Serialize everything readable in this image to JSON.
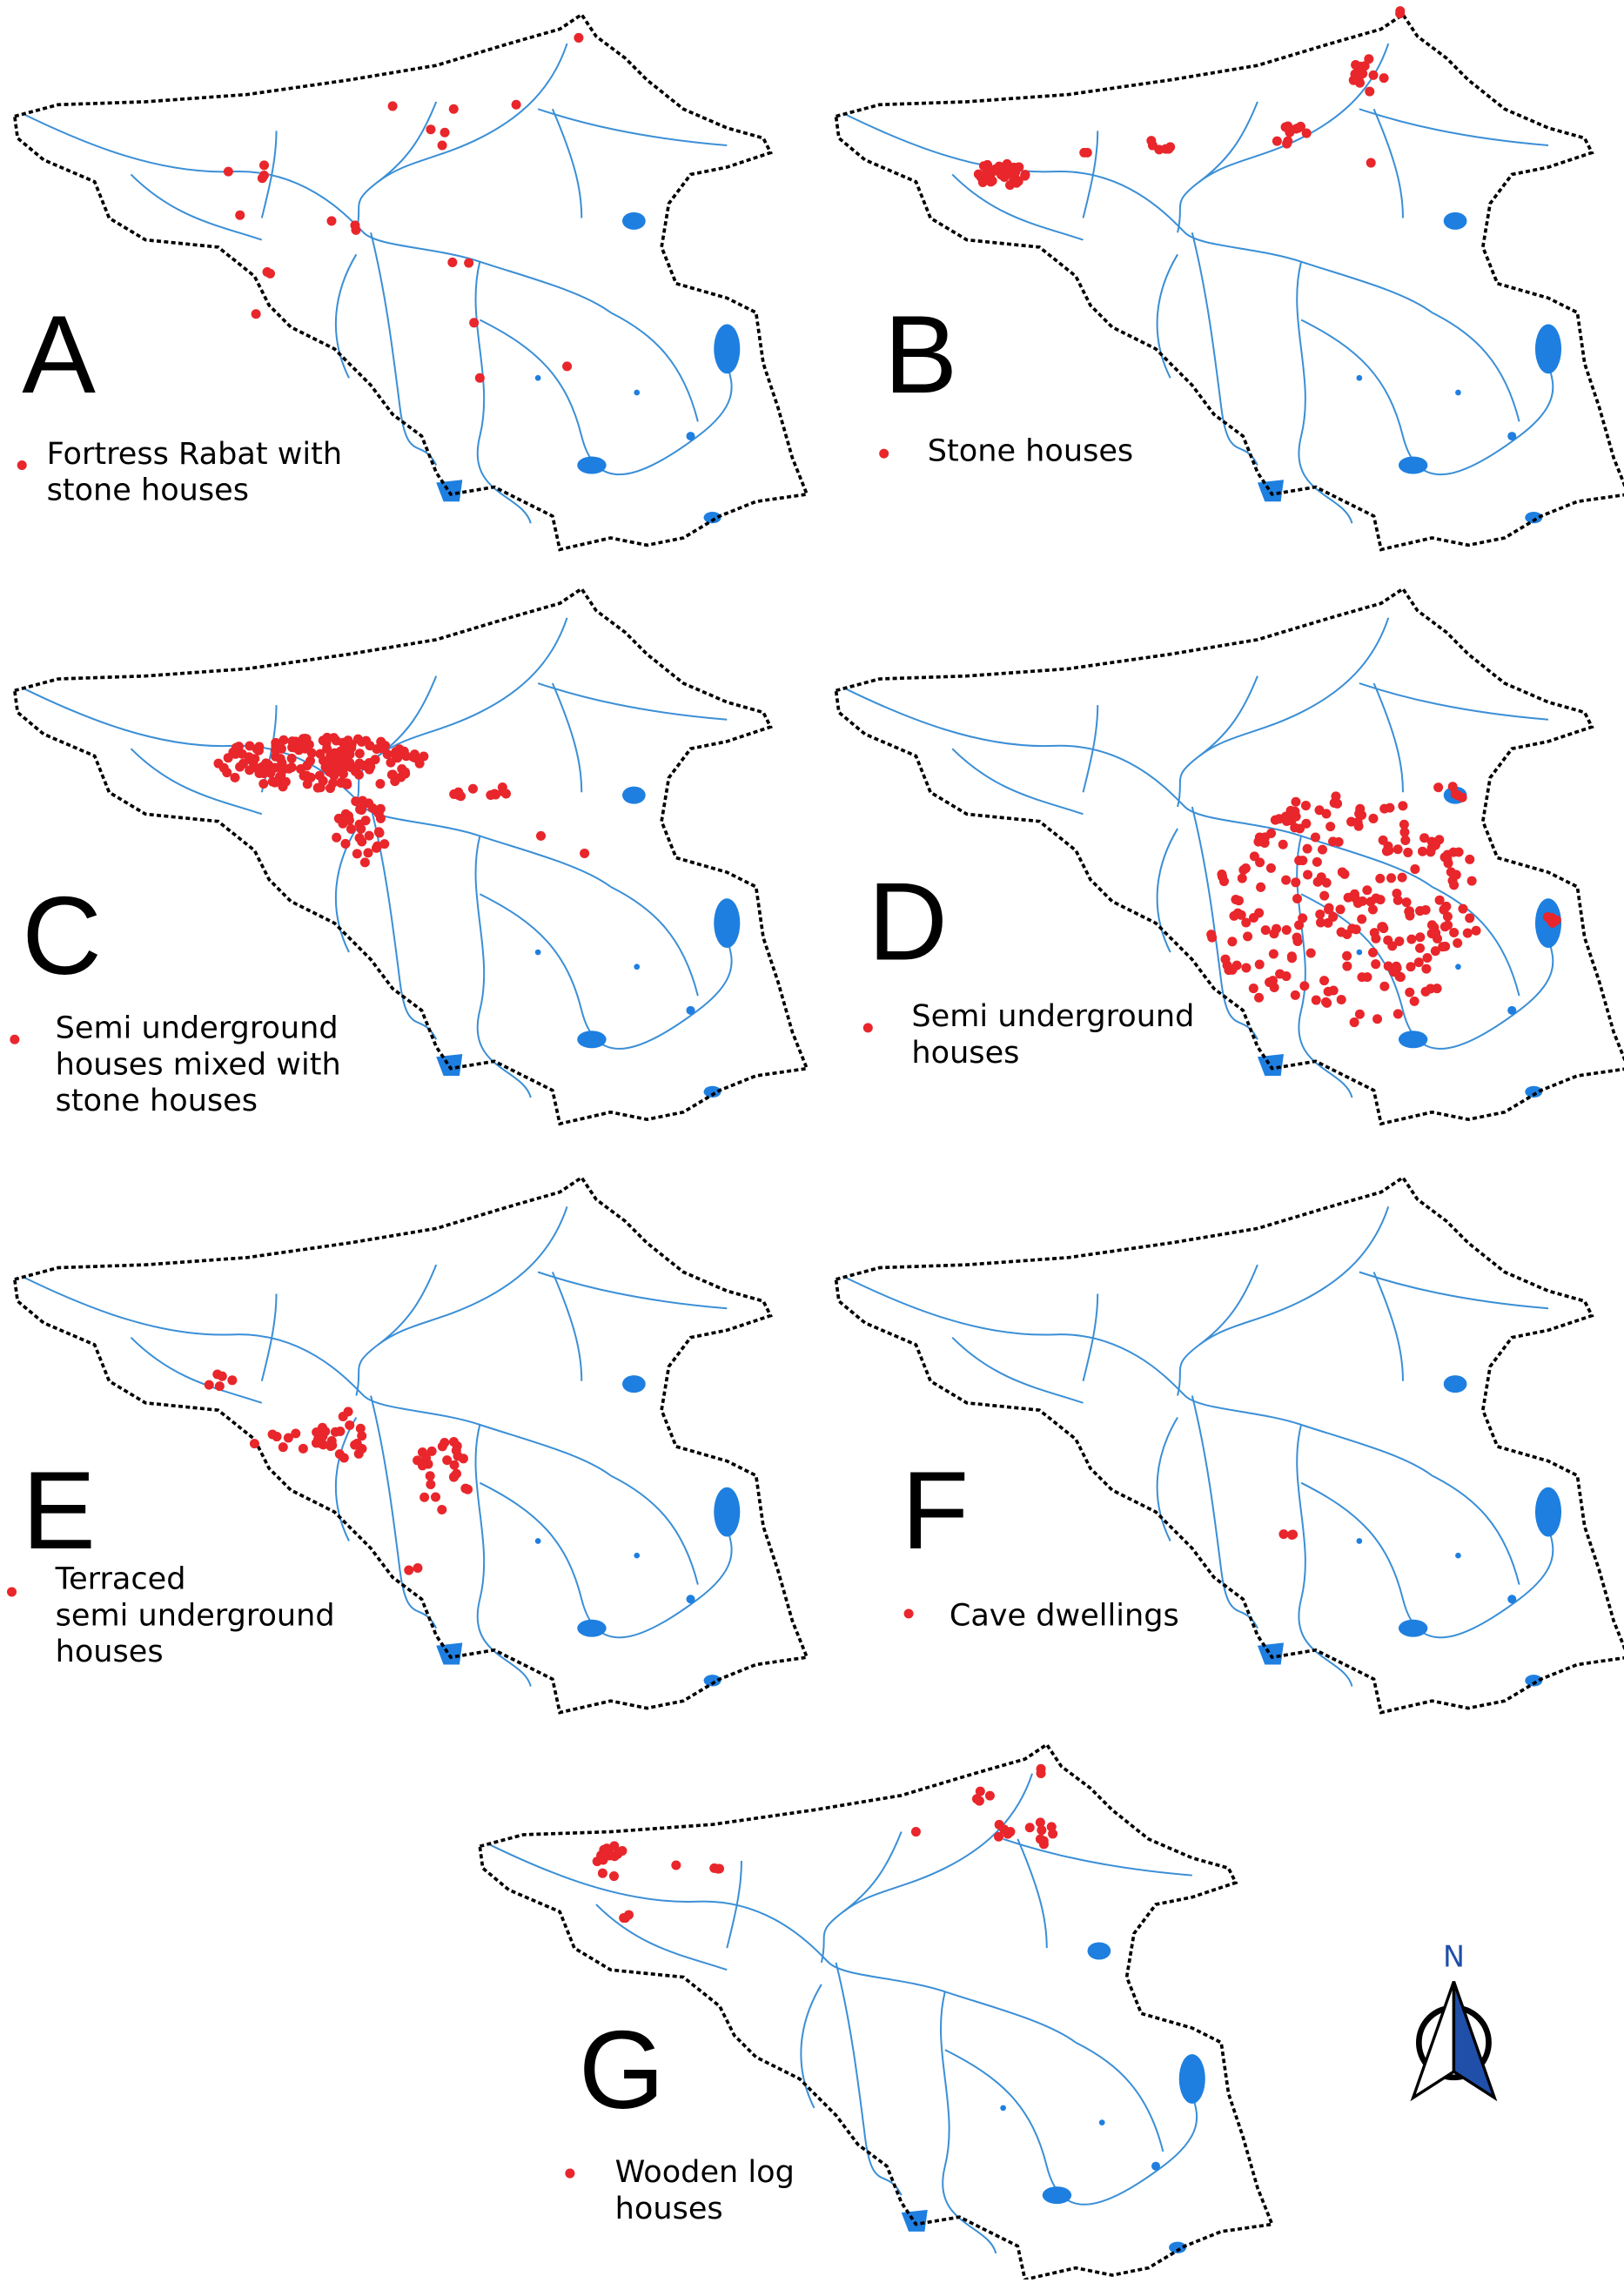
{
  "panels": [
    {
      "letter": "A",
      "legend": [
        "Fortress Rabat with",
        "stone houses"
      ]
    },
    {
      "letter": "B",
      "legend": [
        "Stone houses"
      ]
    },
    {
      "letter": "C",
      "legend": [
        "Semi underground",
        "houses mixed with",
        "stone houses"
      ]
    },
    {
      "letter": "D",
      "legend": [
        "Semi underground",
        "houses"
      ]
    },
    {
      "letter": "E",
      "legend": [
        "Terraced",
        "semi underground",
        "houses"
      ]
    },
    {
      "letter": "F",
      "legend": [
        "Cave dwellings"
      ]
    },
    {
      "letter": "G",
      "legend": [
        "Wooden log",
        "houses"
      ]
    }
  ],
  "north_label": "N"
}
